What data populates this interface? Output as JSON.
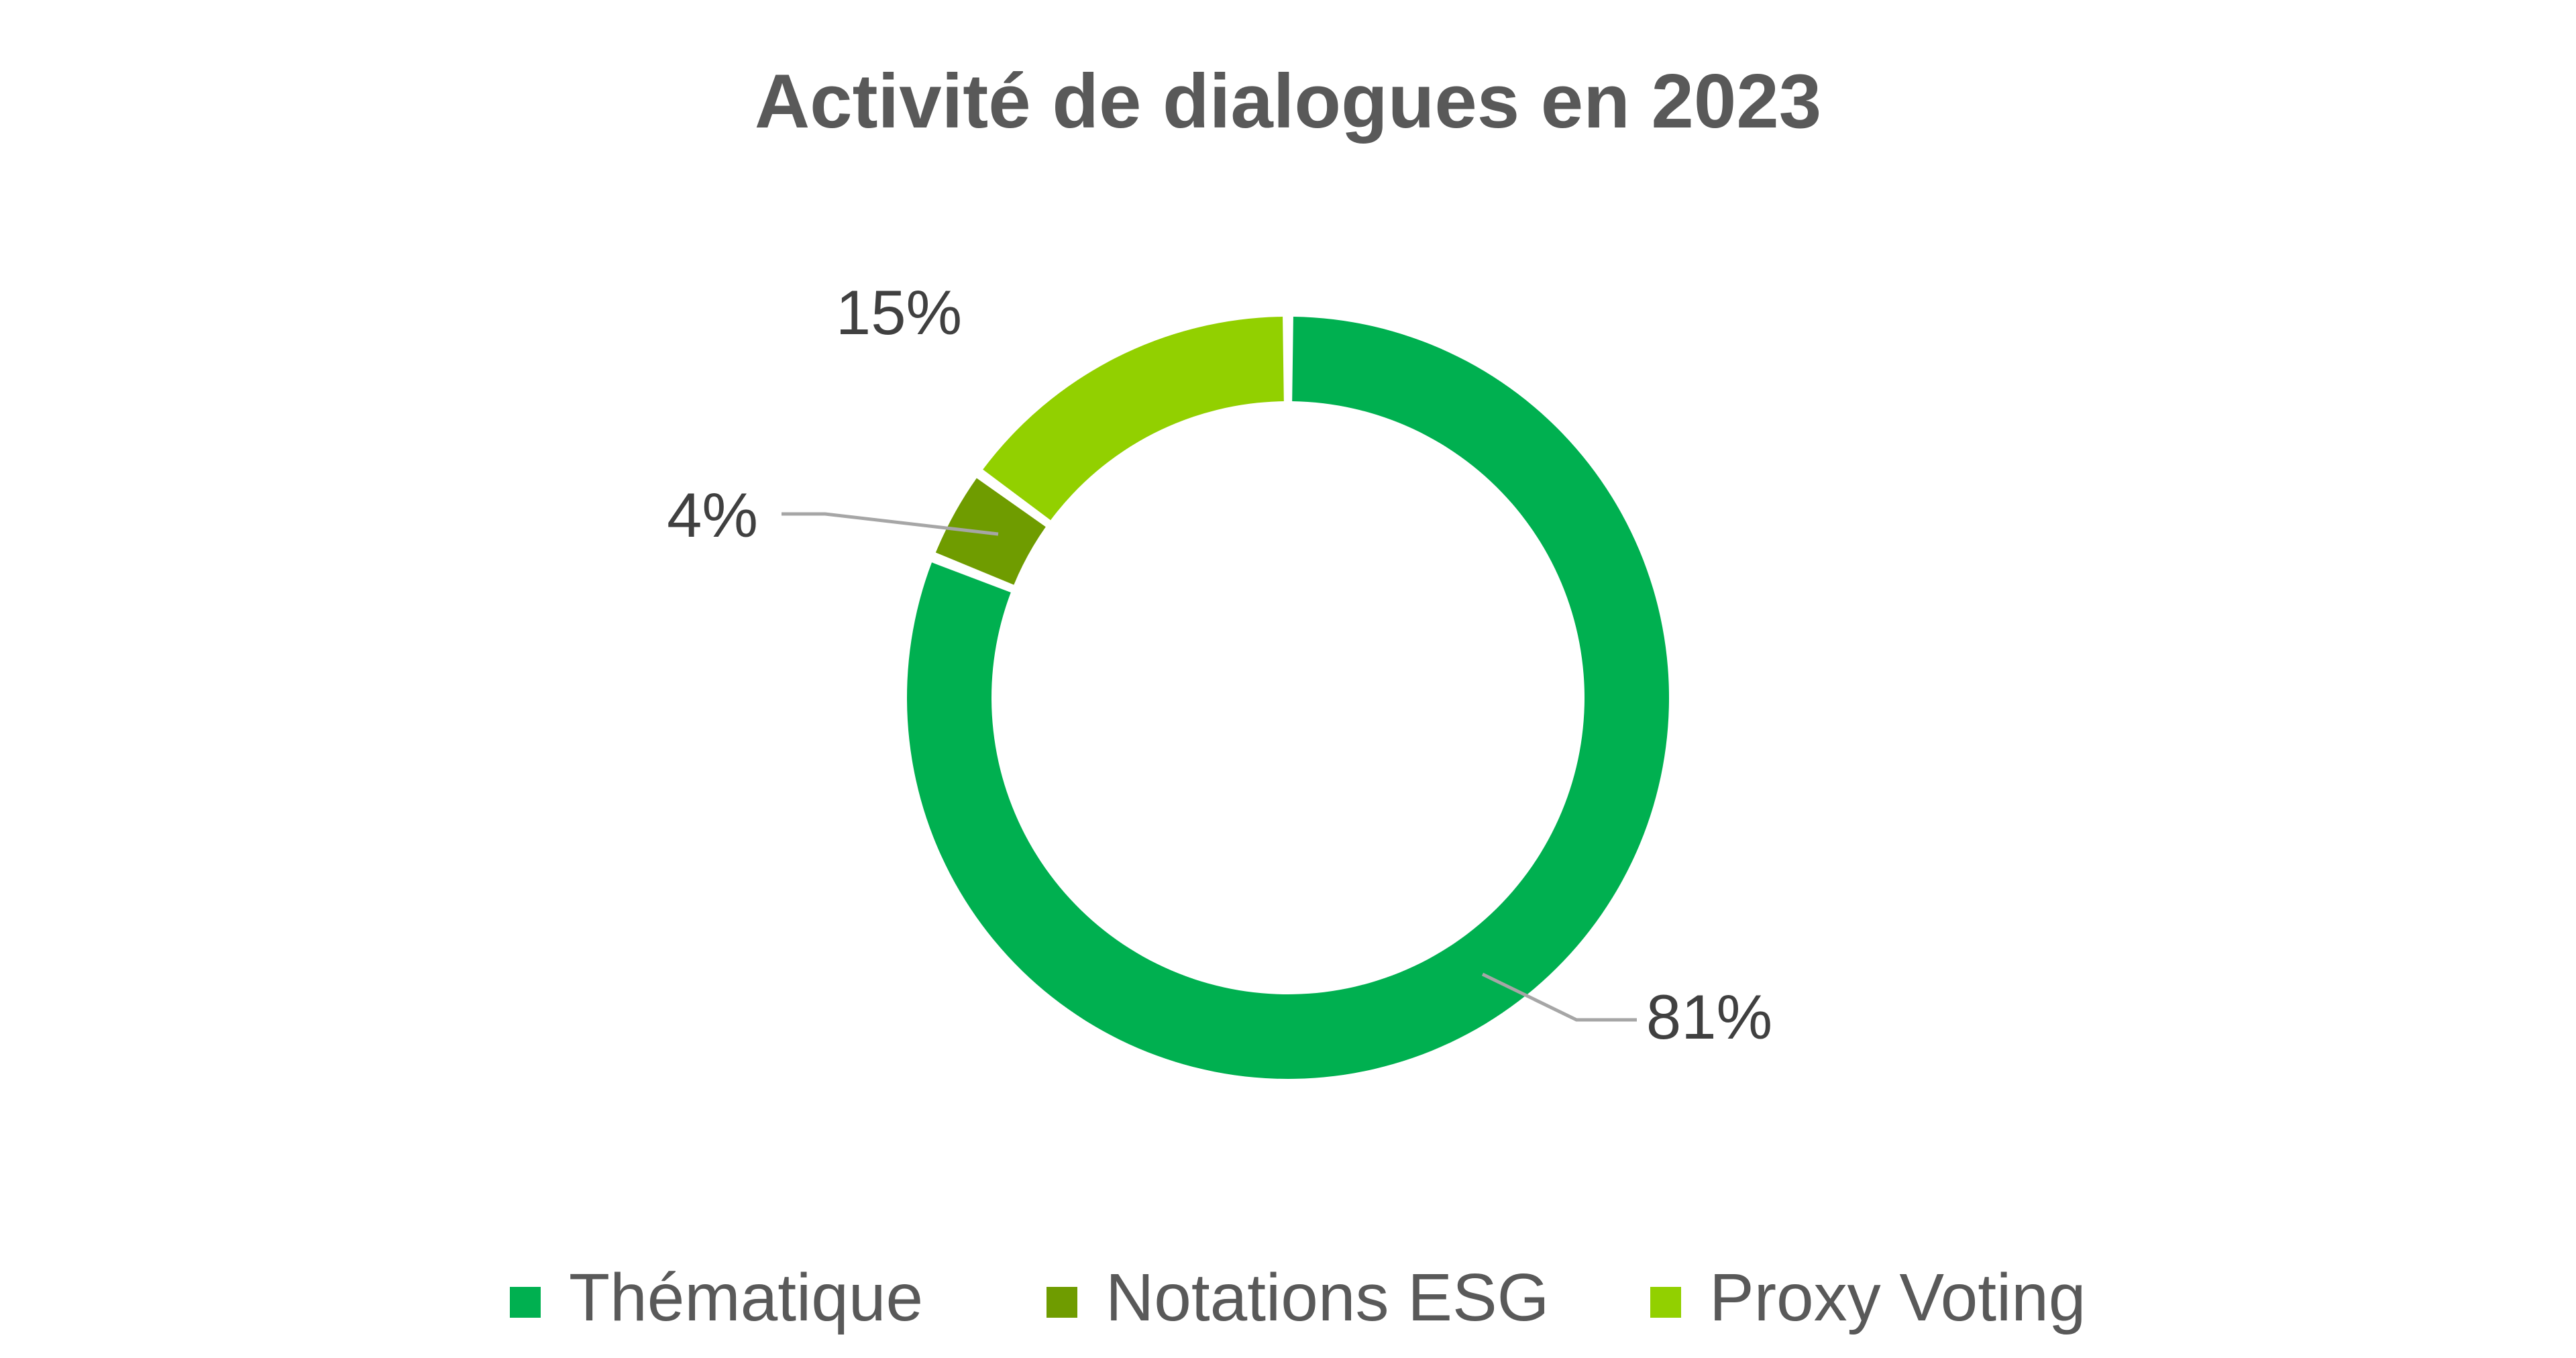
{
  "chart_data": {
    "type": "pie",
    "title": "Activité de dialogues en 2023",
    "categories": [
      "Thématique",
      "Notations ESG",
      "Proxy Voting"
    ],
    "values": [
      81,
      4,
      15
    ],
    "value_labels": [
      "81%",
      "4%",
      "15%"
    ],
    "unit": "%",
    "colors": [
      "#00b050",
      "#6f9c00",
      "#92d000"
    ],
    "legend_position": "bottom",
    "donut": true
  }
}
